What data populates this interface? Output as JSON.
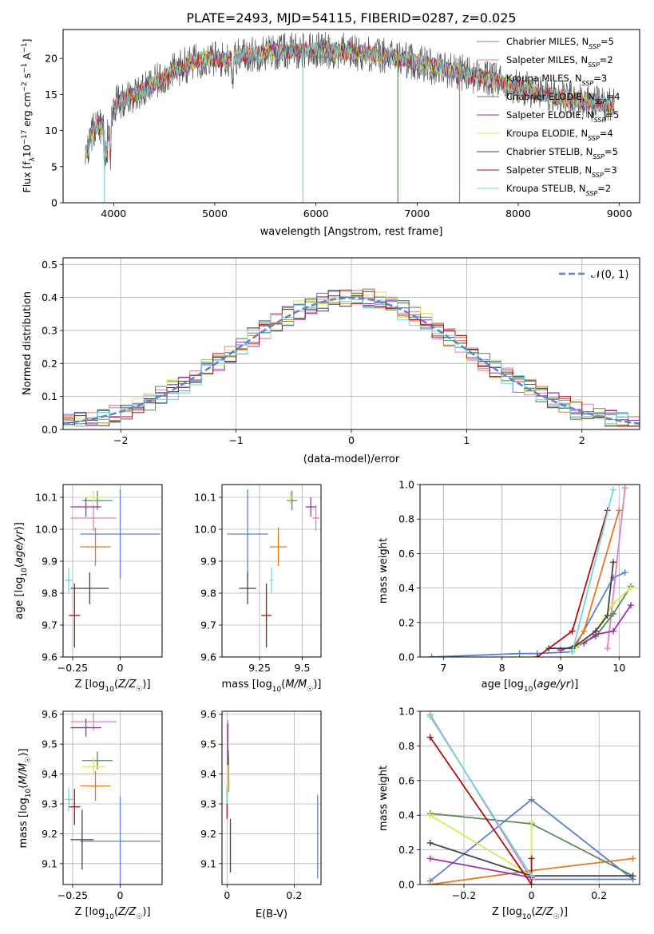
{
  "title": "PLATE=2493, MJD=54115, FIBERID=0287, z=0.025",
  "colors": [
    "#5b7fd6",
    "#e07fc0",
    "#e07a1f",
    "#5a8a5a",
    "#9b30b0",
    "#d8e85a",
    "#444444",
    "#aa1111",
    "#6fd6dc"
  ],
  "legend_top": [
    "Chabrier MILES, N_SSP=5",
    "Salpeter MILES, N_SSP=2",
    "Kroupa MILES, N_SSP=3",
    "Chabrier ELODIE, N_SSP=4",
    "Salpeter ELODIE, N_SSP=5",
    "Kroupa ELODIE, N_SSP=4",
    "Chabrier STELIB, N_SSP=5",
    "Salpeter STELIB, N_SSP=3",
    "Kroupa STELIB, N_SSP=2"
  ],
  "chart_data": [
    {
      "id": "spectrum",
      "type": "line",
      "title": "PLATE=2493, MJD=54115, FIBERID=0287, z=0.025",
      "xlabel": "wavelength [Angstrom, rest frame]",
      "ylabel": "Flux [f_λ 10^-17 erg cm^-2 s^-1 A^-1]",
      "xlim": [
        3500,
        9200
      ],
      "ylim": [
        0,
        24
      ],
      "xticks": [
        4000,
        5000,
        6000,
        7000,
        8000,
        9000
      ],
      "yticks": [
        0,
        5,
        10,
        15,
        20
      ],
      "continuum": {
        "x": [
          3720,
          3780,
          3850,
          3950,
          4000,
          4100,
          4300,
          4500,
          4700,
          4900,
          5100,
          5300,
          5500,
          5700,
          6000,
          6300,
          6600,
          6900,
          7200,
          7500,
          7800,
          8100,
          8400,
          8700,
          8950
        ],
        "y": [
          6.5,
          9.5,
          11,
          9.5,
          13.5,
          14.5,
          15.5,
          17.5,
          19,
          20,
          19.8,
          20.5,
          20.8,
          21,
          21.2,
          21,
          20.5,
          19.8,
          18.8,
          17.8,
          16.8,
          15.6,
          14.6,
          13.9,
          13.3
        ]
      }
    },
    {
      "id": "residuals",
      "type": "histogram",
      "xlabel": "(data-model)/error",
      "ylabel": "Normed distribution",
      "xlim": [
        -2.5,
        2.5
      ],
      "ylim": [
        0,
        0.52
      ],
      "xticks": [
        -2,
        -1,
        0,
        1,
        2
      ],
      "yticks": [
        0.0,
        0.1,
        0.2,
        0.3,
        0.4,
        0.5
      ],
      "legend": "N(0,1)",
      "bin_width": 0.1
    },
    {
      "id": "age_vs_Z",
      "type": "scatter",
      "xlabel": "Z [log10(Z/Z☉)]",
      "ylabel": "age [log10(age/yr)]",
      "xlim": [
        -0.3,
        0.22
      ],
      "ylim": [
        9.6,
        10.14
      ],
      "xticks": [
        -0.25,
        0.0
      ],
      "yticks": [
        9.6,
        9.7,
        9.8,
        9.9,
        10.0,
        10.1
      ],
      "points": [
        {
          "x": 0.0,
          "y": 9.985,
          "xerr": 0.21,
          "yerr": 0.14
        },
        {
          "x": -0.14,
          "y": 10.035,
          "xerr": 0.12,
          "yerr": 0.04
        },
        {
          "x": -0.13,
          "y": 9.945,
          "xerr": 0.08,
          "yerr": 0.06
        },
        {
          "x": -0.12,
          "y": 10.09,
          "xerr": 0.08,
          "yerr": 0.03
        },
        {
          "x": -0.18,
          "y": 10.07,
          "xerr": 0.08,
          "yerr": 0.03
        },
        {
          "x": -0.14,
          "y": 10.1,
          "xerr": 0.06,
          "yerr": 0.02
        },
        {
          "x": -0.16,
          "y": 9.815,
          "xerr": 0.1,
          "yerr": 0.05
        },
        {
          "x": -0.24,
          "y": 9.73,
          "xerr": 0.03,
          "yerr": 0.1
        },
        {
          "x": -0.27,
          "y": 9.84,
          "xerr": 0.02,
          "yerr": 0.04
        }
      ]
    },
    {
      "id": "age_vs_mass",
      "type": "scatter",
      "xlabel": "mass [log10(M/M☉)]",
      "xlim": [
        9.03,
        9.61
      ],
      "ylim": [
        9.6,
        10.14
      ],
      "xticks": [
        9.25,
        9.5
      ],
      "yticks": [
        9.6,
        9.7,
        9.8,
        9.9,
        10.0,
        10.1
      ],
      "points": [
        {
          "x": 9.18,
          "y": 9.985,
          "xerr": 0.12,
          "yerr": 0.14
        },
        {
          "x": 9.58,
          "y": 10.035,
          "xerr": 0.02,
          "yerr": 0.04
        },
        {
          "x": 9.36,
          "y": 9.945,
          "xerr": 0.05,
          "yerr": 0.06
        },
        {
          "x": 9.44,
          "y": 10.09,
          "xerr": 0.03,
          "yerr": 0.03
        },
        {
          "x": 9.55,
          "y": 10.07,
          "xerr": 0.03,
          "yerr": 0.03
        },
        {
          "x": 9.43,
          "y": 10.1,
          "xerr": 0.03,
          "yerr": 0.02
        },
        {
          "x": 9.18,
          "y": 9.815,
          "xerr": 0.05,
          "yerr": 0.05
        },
        {
          "x": 9.29,
          "y": 9.73,
          "xerr": 0.03,
          "yerr": 0.1
        },
        {
          "x": 9.32,
          "y": 9.84,
          "xerr": 0.01,
          "yerr": 0.04
        }
      ]
    },
    {
      "id": "massweight_vs_age",
      "type": "line",
      "xlabel": "age [log10(age/yr)]",
      "ylabel": "mass weight",
      "xlim": [
        6.6,
        10.35
      ],
      "ylim": [
        0,
        1
      ],
      "xticks": [
        7,
        8,
        9,
        10
      ],
      "yticks": [
        0.0,
        0.2,
        0.4,
        0.6,
        0.8,
        1.0
      ],
      "series": [
        {
          "x": [
            6.8,
            8.3,
            8.6,
            9.2,
            9.9,
            10.1
          ],
          "y": [
            0.0,
            0.02,
            0.02,
            0.03,
            0.46,
            0.49
          ]
        },
        {
          "x": [
            9.8,
            10.1
          ],
          "y": [
            0.05,
            0.98
          ]
        },
        {
          "x": [
            9.2,
            9.4,
            10.0
          ],
          "y": [
            0.05,
            0.15,
            0.85
          ]
        },
        {
          "x": [
            9.0,
            9.3,
            9.6,
            9.9,
            10.2
          ],
          "y": [
            0.04,
            0.07,
            0.12,
            0.25,
            0.41
          ]
        },
        {
          "x": [
            9.0,
            9.4,
            9.6,
            9.9,
            10.2
          ],
          "y": [
            0.04,
            0.08,
            0.13,
            0.15,
            0.3
          ]
        },
        {
          "x": [
            9.2,
            9.6,
            9.9,
            10.2
          ],
          "y": [
            0.04,
            0.15,
            0.31,
            0.4
          ]
        },
        {
          "x": [
            8.8,
            9.2,
            9.6,
            9.8,
            9.9
          ],
          "y": [
            0.05,
            0.05,
            0.15,
            0.24,
            0.55
          ]
        },
        {
          "x": [
            8.6,
            9.2,
            9.8
          ],
          "y": [
            0.0,
            0.15,
            0.85
          ]
        },
        {
          "x": [
            9.2,
            9.9
          ],
          "y": [
            0.03,
            0.97
          ]
        }
      ]
    },
    {
      "id": "mass_vs_Z",
      "type": "scatter",
      "xlabel": "Z [log10(Z/Z☉)]",
      "ylabel": "mass [log10(M/M☉)]",
      "xlim": [
        -0.3,
        0.22
      ],
      "ylim": [
        9.03,
        9.61
      ],
      "xticks": [
        -0.25,
        0.0
      ],
      "yticks": [
        9.1,
        9.2,
        9.3,
        9.4,
        9.5,
        9.6
      ],
      "points": [
        {
          "x": 0.0,
          "y": 9.175,
          "xerr": 0.21,
          "yerr": 0.15
        },
        {
          "x": -0.14,
          "y": 9.575,
          "xerr": 0.12,
          "yerr": 0.03
        },
        {
          "x": -0.13,
          "y": 9.36,
          "xerr": 0.08,
          "yerr": 0.05
        },
        {
          "x": -0.12,
          "y": 9.445,
          "xerr": 0.08,
          "yerr": 0.03
        },
        {
          "x": -0.18,
          "y": 9.555,
          "xerr": 0.08,
          "yerr": 0.03
        },
        {
          "x": -0.14,
          "y": 9.425,
          "xerr": 0.06,
          "yerr": 0.03
        },
        {
          "x": -0.2,
          "y": 9.18,
          "xerr": 0.06,
          "yerr": 0.1
        },
        {
          "x": -0.24,
          "y": 9.29,
          "xerr": 0.03,
          "yerr": 0.06
        },
        {
          "x": -0.27,
          "y": 9.315,
          "xerr": 0.02,
          "yerr": 0.04
        }
      ]
    },
    {
      "id": "mass_vs_ebv",
      "type": "scatter",
      "xlabel": "E(B-V)",
      "xlim": [
        -0.015,
        0.28
      ],
      "ylim": [
        9.03,
        9.61
      ],
      "xticks": [
        0.0,
        0.2
      ],
      "yticks": [
        9.1,
        9.2,
        9.3,
        9.4,
        9.5,
        9.6
      ],
      "points": [
        {
          "x": 0.27,
          "y": 9.19,
          "yerr": 0.14
        },
        {
          "x": 0.003,
          "y": 9.5,
          "yerr": 0.08
        },
        {
          "x": 0.005,
          "y": 9.4,
          "yerr": 0.06
        },
        {
          "x": 0.004,
          "y": 9.43,
          "yerr": 0.05
        },
        {
          "x": 0.002,
          "y": 9.5,
          "yerr": 0.07
        },
        {
          "x": 0.003,
          "y": 9.38,
          "yerr": 0.05
        },
        {
          "x": 0.01,
          "y": 9.16,
          "yerr": 0.09
        },
        {
          "x": 0.0,
          "y": 9.3,
          "yerr": 0.05
        },
        {
          "x": 0.0,
          "y": 9.33,
          "yerr": 0.03
        }
      ]
    },
    {
      "id": "massweight_vs_Z",
      "type": "line",
      "xlabel": "Z [log10(Z/Z☉)]",
      "ylabel": "mass weight",
      "xlim": [
        -0.33,
        0.32
      ],
      "ylim": [
        0,
        1
      ],
      "xticks": [
        -0.2,
        0.0,
        0.2
      ],
      "yticks": [
        0.0,
        0.2,
        0.4,
        0.6,
        0.8,
        1.0
      ],
      "series": [
        {
          "x": [
            -0.3,
            0.0,
            0.3,
            0.0
          ],
          "y": [
            0.02,
            0.49,
            0.03,
            0.03
          ]
        },
        {
          "x": [
            -0.3,
            0.0
          ],
          "y": [
            0.98,
            0.03
          ]
        },
        {
          "x": [
            -0.3,
            0.0,
            0.3
          ],
          "y": [
            0.0,
            0.08,
            0.15
          ]
        },
        {
          "x": [
            -0.3,
            0.0,
            0.3
          ],
          "y": [
            0.41,
            0.35,
            0.05
          ]
        },
        {
          "x": [
            -0.3,
            0.0
          ],
          "y": [
            0.15,
            0.04
          ]
        },
        {
          "x": [
            -0.3,
            0.0,
            0.0
          ],
          "y": [
            0.4,
            0.05,
            0.36
          ]
        },
        {
          "x": [
            -0.3,
            0.0,
            0.3
          ],
          "y": [
            0.24,
            0.05,
            0.05
          ]
        },
        {
          "x": [
            -0.3,
            0.0,
            0.0
          ],
          "y": [
            0.85,
            0.0,
            0.15
          ]
        },
        {
          "x": [
            -0.3,
            0.0
          ],
          "y": [
            0.97,
            0.05
          ]
        }
      ]
    }
  ]
}
